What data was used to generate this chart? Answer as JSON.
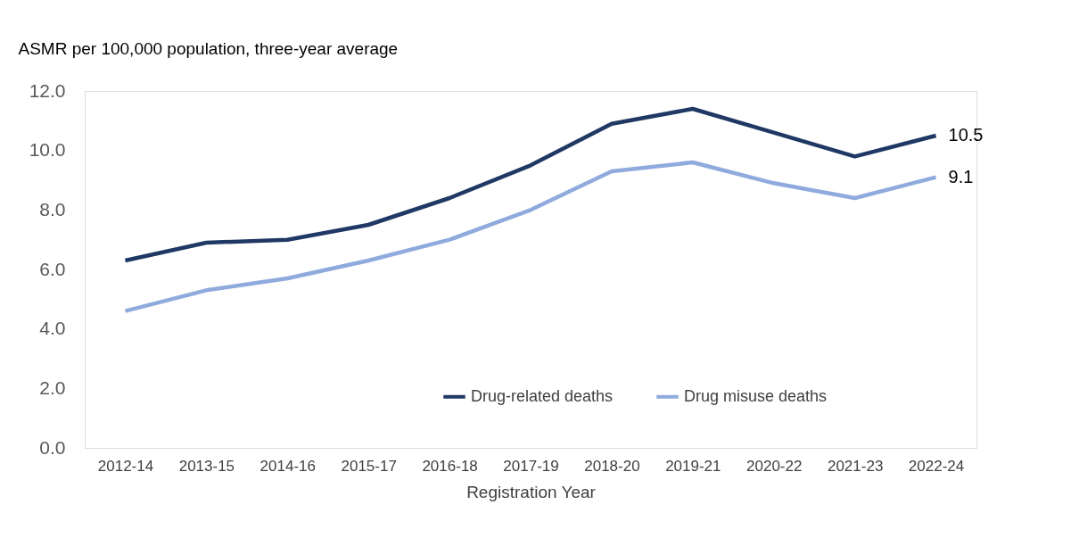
{
  "chart_data": {
    "type": "line",
    "ylabel": "ASMR per 100,000 population, three-year average",
    "xlabel": "Registration Year",
    "categories": [
      "2012-14",
      "2013-15",
      "2014-16",
      "2015-17",
      "2016-18",
      "2017-19",
      "2018-20",
      "2019-21",
      "2020-22",
      "2021-23",
      "2022-24"
    ],
    "series": [
      {
        "name": "Drug-related deaths",
        "color": "#203864",
        "values": [
          6.3,
          6.9,
          7.0,
          7.5,
          8.4,
          9.5,
          10.9,
          11.4,
          10.6,
          9.8,
          10.5
        ],
        "value_labels": [
          null,
          null,
          null,
          null,
          null,
          null,
          null,
          null,
          null,
          null,
          "10.5"
        ]
      },
      {
        "name": "Drug misuse deaths",
        "color": "#8faadc",
        "values": [
          4.6,
          5.3,
          5.7,
          6.3,
          7.0,
          8.0,
          9.3,
          9.6,
          8.9,
          8.4,
          9.1
        ],
        "value_labels": [
          null,
          null,
          null,
          null,
          null,
          null,
          null,
          null,
          null,
          null,
          "9.1"
        ]
      }
    ],
    "ylim": [
      0,
      12
    ],
    "yticks": [
      {
        "value": 0,
        "label": "0.0"
      },
      {
        "value": 2,
        "label": "2.0"
      },
      {
        "value": 4,
        "label": "4.0"
      },
      {
        "value": 6,
        "label": "6.0"
      },
      {
        "value": 8,
        "label": "8.0"
      },
      {
        "value": 10,
        "label": "10.0"
      },
      {
        "value": 12,
        "label": "12.0"
      }
    ],
    "grid": false,
    "legend": "bottom right",
    "marker": "none",
    "line_style": "solid"
  }
}
